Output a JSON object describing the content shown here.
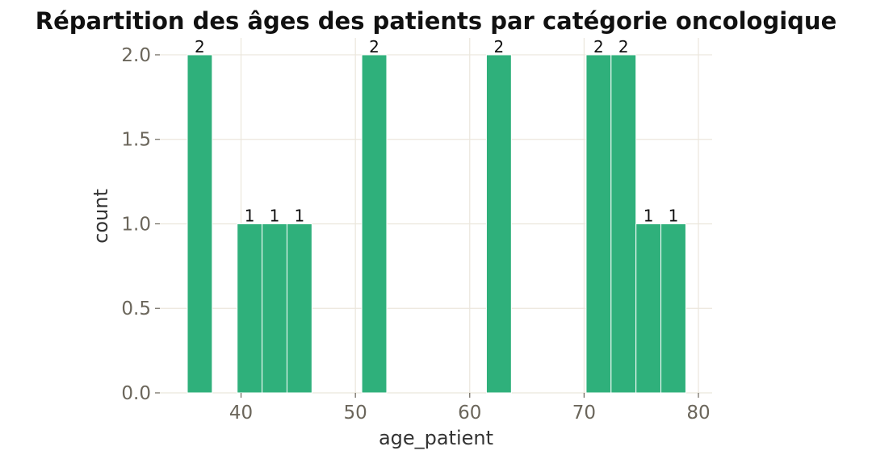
{
  "chart_data": {
    "type": "bar",
    "title": "Répartition des âges des patients par catégorie oncologique",
    "xlabel": "age_patient",
    "ylabel": "count",
    "xlim": [
      32.9,
      81.2
    ],
    "ylim": [
      0,
      2.1
    ],
    "xticks": [
      40,
      50,
      60,
      70,
      80
    ],
    "yticks": [
      0.0,
      0.5,
      1.0,
      1.5,
      2.0
    ],
    "ytick_labels": [
      "0.0",
      "0.5",
      "1.0",
      "1.5",
      "2.0"
    ],
    "grid": true,
    "bin_width": 2.18,
    "bins": [
      {
        "x0": 35.3,
        "x1": 37.48,
        "count": 2,
        "label": "2"
      },
      {
        "x0": 39.66,
        "x1": 41.84,
        "count": 1,
        "label": "1"
      },
      {
        "x0": 41.84,
        "x1": 44.02,
        "count": 1,
        "label": "1"
      },
      {
        "x0": 44.02,
        "x1": 46.2,
        "count": 1,
        "label": "1"
      },
      {
        "x0": 50.56,
        "x1": 52.74,
        "count": 2,
        "label": "2"
      },
      {
        "x0": 61.46,
        "x1": 63.64,
        "count": 2,
        "label": "2"
      },
      {
        "x0": 70.18,
        "x1": 72.36,
        "count": 2,
        "label": "2"
      },
      {
        "x0": 72.36,
        "x1": 74.54,
        "count": 2,
        "label": "2"
      },
      {
        "x0": 74.54,
        "x1": 76.72,
        "count": 1,
        "label": "1"
      },
      {
        "x0": 76.72,
        "x1": 78.9,
        "count": 1,
        "label": "1"
      }
    ],
    "colors": {
      "bar": "#2fb07b",
      "bar_edge": "#ffffff",
      "grid": "#ebe6dc",
      "tick": "#6b665b"
    }
  }
}
